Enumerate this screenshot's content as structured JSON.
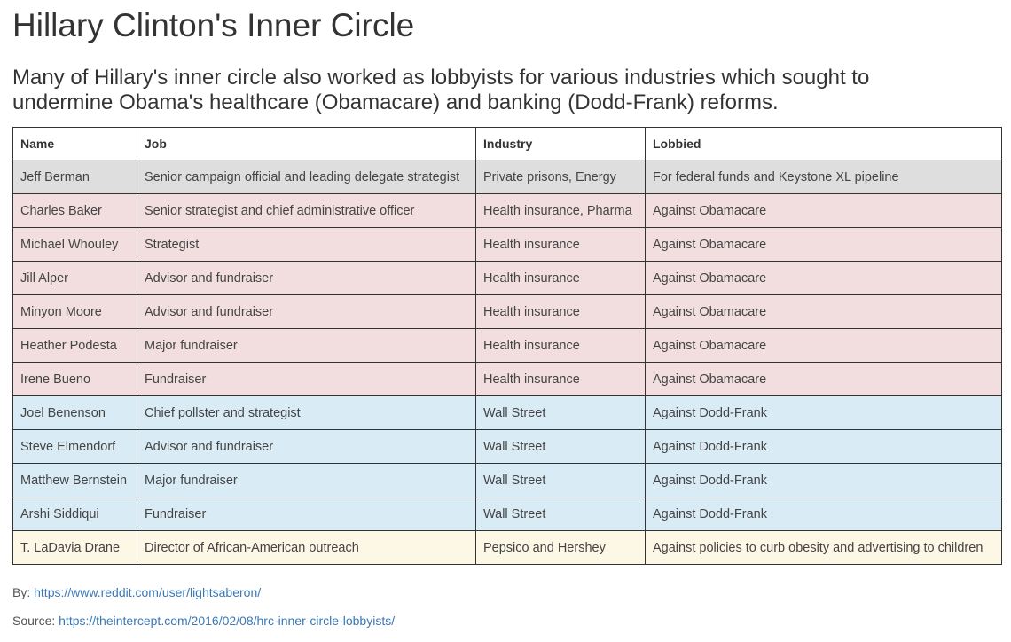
{
  "header": {
    "title": "Hillary Clinton's Inner Circle",
    "subtitle": "Many of Hillary's inner circle also worked as lobbyists for various industries which sought to undermine Obama's healthcare (Obamacare) and banking (Dodd-Frank) reforms."
  },
  "table": {
    "columns": [
      "Name",
      "Job",
      "Industry",
      "Lobbied"
    ],
    "rows": [
      [
        "Jeff Berman",
        "Senior campaign official and leading delegate strategist",
        "Private prisons, Energy",
        "For federal funds and Keystone XL pipeline"
      ],
      [
        "Charles Baker",
        "Senior strategist and chief administrative officer",
        "Health insurance, Pharma",
        "Against Obamacare"
      ],
      [
        "Michael Whouley",
        "Strategist",
        "Health insurance",
        "Against Obamacare"
      ],
      [
        "Jill Alper",
        "Advisor and fundraiser",
        "Health insurance",
        "Against Obamacare"
      ],
      [
        "Minyon Moore",
        "Advisor and fundraiser",
        "Health insurance",
        "Against Obamacare"
      ],
      [
        "Heather Podesta",
        "Major fundraiser",
        "Health insurance",
        "Against Obamacare"
      ],
      [
        "Irene Bueno",
        "Fundraiser",
        "Health insurance",
        "Against Obamacare"
      ],
      [
        "Joel Benenson",
        "Chief pollster and strategist",
        "Wall Street",
        "Against Dodd-Frank"
      ],
      [
        "Steve Elmendorf",
        "Advisor and fundraiser",
        "Wall Street",
        "Against Dodd-Frank"
      ],
      [
        "Matthew Bernstein",
        "Major fundraiser",
        "Wall Street",
        "Against Dodd-Frank"
      ],
      [
        "Arshi Siddiqui",
        "Fundraiser",
        "Wall Street",
        "Against Dodd-Frank"
      ],
      [
        "T. LaDavia Drane",
        "Director of African-American outreach",
        "Pepsico and Hershey",
        "Against policies to curb obesity and advertising to children"
      ]
    ],
    "row_colors": [
      "#dedede",
      "#f2dede",
      "#f2dede",
      "#f2dede",
      "#f2dede",
      "#f2dede",
      "#f2dede",
      "#d9ecf6",
      "#d9ecf6",
      "#d9ecf6",
      "#d9ecf6",
      "#fcf8e5"
    ]
  },
  "footer": {
    "by_label": "By:",
    "by_link": "https://www.reddit.com/user/lightsaberon/",
    "source_label": "Source:",
    "source_link": "https://theintercept.com/2016/02/08/hrc-inner-circle-lobbyists/"
  }
}
